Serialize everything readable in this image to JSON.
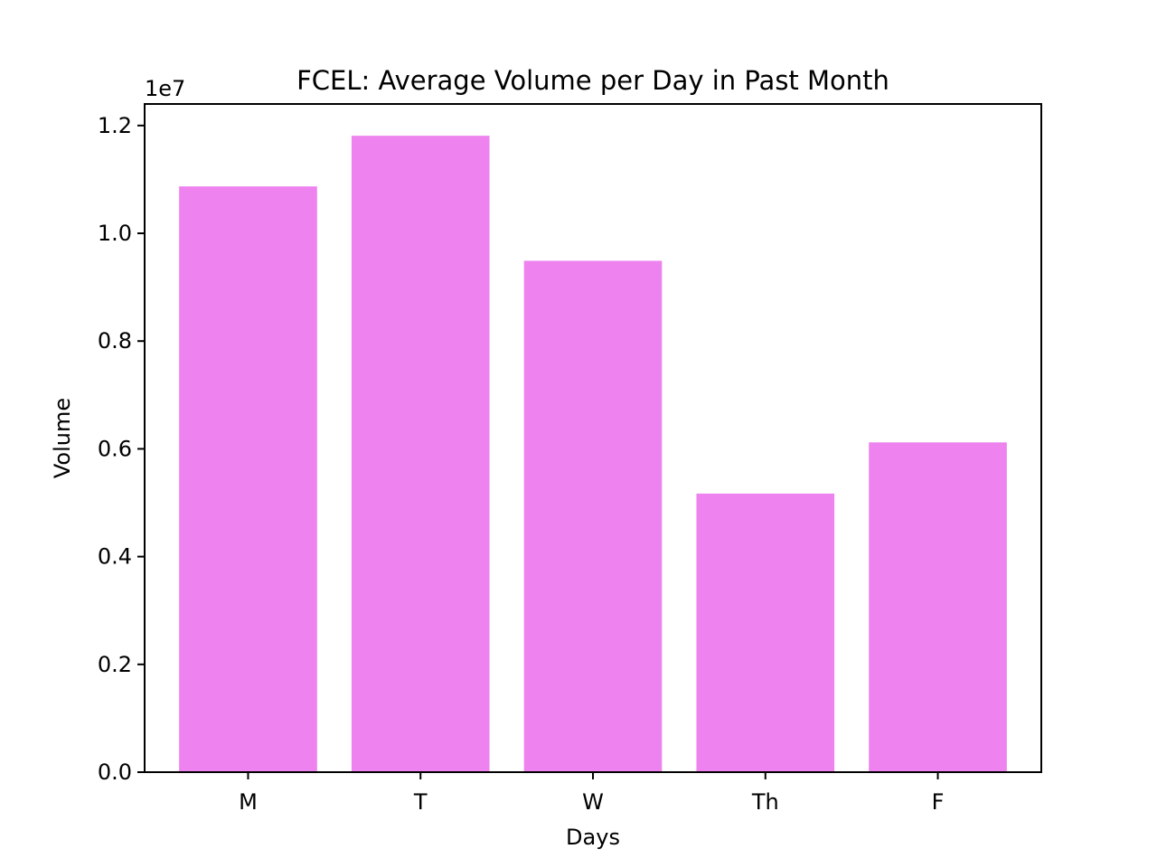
{
  "chart_data": {
    "type": "bar",
    "title": "FCEL: Average Volume per Day in Past Month",
    "xlabel": "Days",
    "ylabel": "Volume",
    "categories": [
      "M",
      "T",
      "W",
      "Th",
      "F"
    ],
    "values": [
      10870000,
      11810000,
      9490000,
      5170000,
      6120000
    ],
    "ylim": [
      0,
      12400000
    ],
    "yticks": [
      0,
      2000000,
      4000000,
      6000000,
      8000000,
      10000000,
      12000000
    ],
    "ytick_labels": [
      "0.0",
      "0.2",
      "0.4",
      "0.6",
      "0.8",
      "1.0",
      "1.2"
    ],
    "y_offset_label": "1e7",
    "bar_color": "#ee82ee",
    "grid": false,
    "legend": false
  }
}
